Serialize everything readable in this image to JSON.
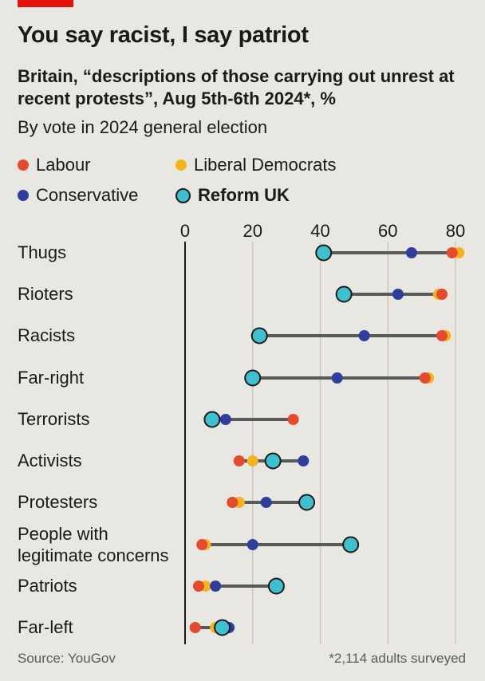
{
  "header": {
    "title": "You say racist, I say patriot",
    "subtitle": "Britain, “descriptions of those carrying out unrest at recent protests”, Aug 5th-6th 2024*, %",
    "subtitle2": "By vote in 2024 general election"
  },
  "footer": {
    "source": "Source: YouGov",
    "note": "*2,114 adults surveyed"
  },
  "colors": {
    "labour": "#e64a2e",
    "libdem": "#f5b41e",
    "conservative": "#2f3e9e",
    "reform": "#3ec1cf",
    "connector": "#595959",
    "grid": "#c9c7c0"
  },
  "chart_data": {
    "type": "dot",
    "xlim": [
      0,
      80
    ],
    "xticks": [
      "0",
      "20",
      "40",
      "60",
      "80"
    ],
    "categories": [
      "Thugs",
      "Rioters",
      "Racists",
      "Far-right",
      "Terrorists",
      "Activists",
      "Protesters",
      "People with legitimate concerns",
      "Patriots",
      "Far-left"
    ],
    "category_lines": [
      [
        "Thugs"
      ],
      [
        "Rioters"
      ],
      [
        "Racists"
      ],
      [
        "Far-right"
      ],
      [
        "Terrorists"
      ],
      [
        "Activists"
      ],
      [
        "Protesters"
      ],
      [
        "People with",
        "legitimate concerns"
      ],
      [
        "Patriots"
      ],
      [
        "Far-left"
      ]
    ],
    "legend_position": "top",
    "series": [
      {
        "name": "Labour",
        "key": "labour",
        "values": [
          79,
          76,
          76,
          71,
          32,
          16,
          14,
          5,
          4,
          3
        ]
      },
      {
        "name": "Liberal Democrats",
        "key": "libdem",
        "values": [
          81,
          75,
          77,
          72,
          null,
          20,
          16,
          6,
          6,
          9
        ]
      },
      {
        "name": "Conservative",
        "key": "conservative",
        "values": [
          67,
          63,
          53,
          45,
          12,
          35,
          24,
          20,
          9,
          13
        ]
      },
      {
        "name": "Reform UK",
        "key": "reform",
        "values": [
          41,
          47,
          22,
          20,
          8,
          26,
          36,
          49,
          27,
          11
        ]
      }
    ]
  }
}
